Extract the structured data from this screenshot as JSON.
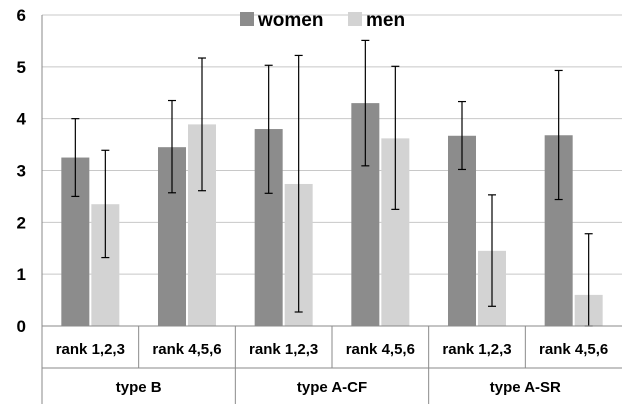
{
  "chart_data": {
    "type": "bar",
    "title": "",
    "xlabel": "",
    "ylabel": "",
    "ylim": [
      0,
      6
    ],
    "yticks": [
      "0",
      "1",
      "2",
      "3",
      "4",
      "5",
      "6"
    ],
    "grid": true,
    "legend_position": "top-center",
    "groups": [
      {
        "label": "type B",
        "categories": [
          "rank 1,2,3",
          "rank 4,5,6"
        ]
      },
      {
        "label": "type A-CF",
        "categories": [
          "rank 1,2,3",
          "rank 4,5,6"
        ]
      },
      {
        "label": "type A-SR",
        "categories": [
          "rank 1,2,3",
          "rank 4,5,6"
        ]
      }
    ],
    "categories": [
      "rank 1,2,3",
      "rank 4,5,6",
      "rank 1,2,3",
      "rank 4,5,6",
      "rank 1,2,3",
      "rank 4,5,6"
    ],
    "series": [
      {
        "name": "women",
        "color": "#8c8c8c",
        "values": [
          3.25,
          3.45,
          3.8,
          4.3,
          3.67,
          3.68
        ],
        "error_low": [
          2.5,
          2.57,
          2.56,
          3.09,
          3.02,
          2.44
        ],
        "error_high": [
          4.0,
          4.35,
          5.03,
          5.51,
          4.33,
          4.93
        ]
      },
      {
        "name": "men",
        "color": "#d3d3d3",
        "values": [
          2.35,
          3.89,
          2.74,
          3.62,
          1.45,
          0.6
        ],
        "error_low": [
          1.32,
          2.61,
          0.27,
          2.25,
          0.38,
          0.0
        ],
        "error_high": [
          3.39,
          5.17,
          5.22,
          5.01,
          2.53,
          1.78
        ]
      }
    ]
  }
}
